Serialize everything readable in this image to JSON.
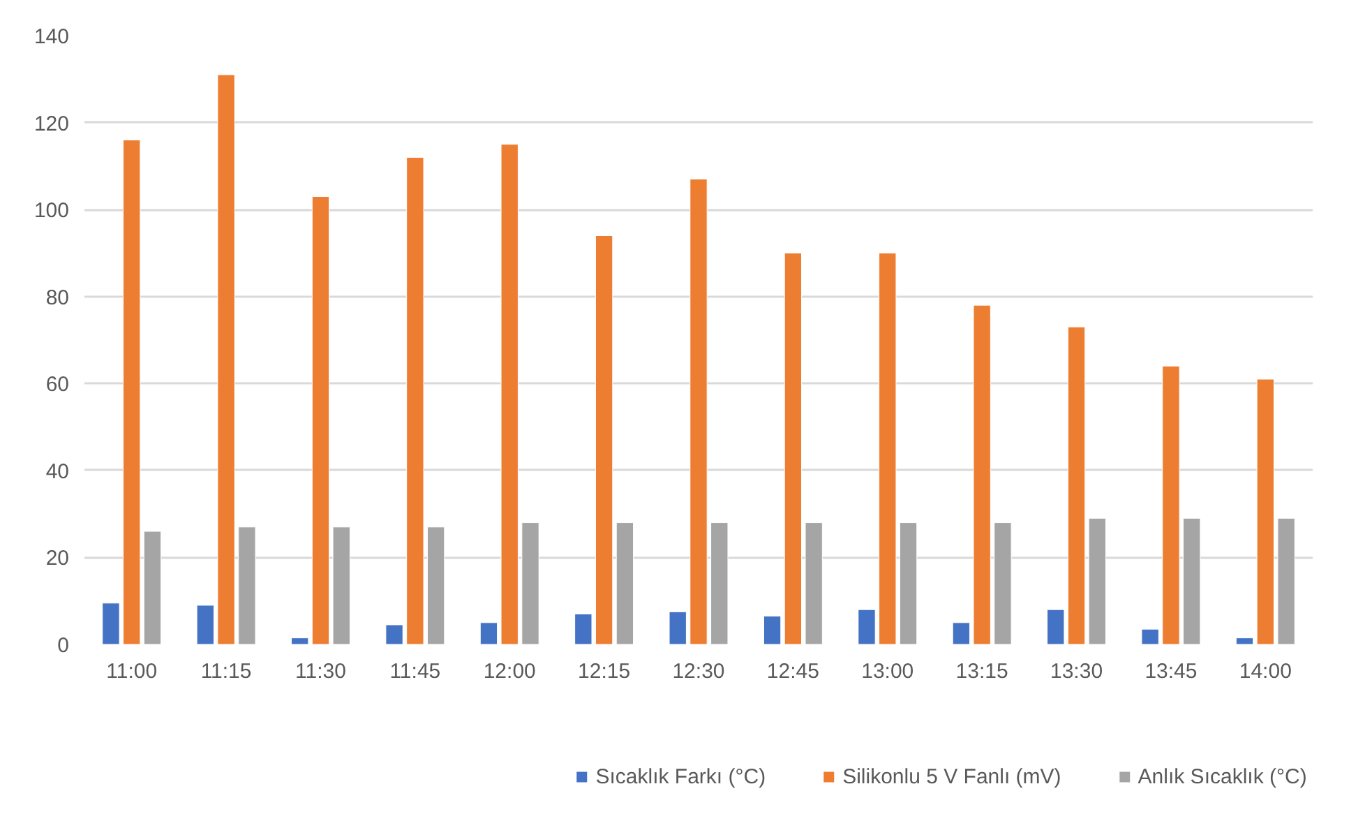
{
  "chart_data": {
    "type": "bar",
    "categories": [
      "11:00",
      "11:15",
      "11:30",
      "11:45",
      "12:00",
      "12:15",
      "12:30",
      "12:45",
      "13:00",
      "13:15",
      "13:30",
      "13:45",
      "14:00"
    ],
    "series": [
      {
        "name": "Sıcaklık Farkı (°C)",
        "color": "#4472c4",
        "values": [
          9.5,
          9,
          1.5,
          4.5,
          5,
          7,
          7.5,
          6.5,
          8,
          5,
          8,
          3.5,
          1.5
        ]
      },
      {
        "name": "Silikonlu 5 V Fanlı (mV)",
        "color": "#ed7d31",
        "values": [
          116,
          131,
          103,
          112,
          115,
          94,
          107,
          90,
          90,
          78,
          73,
          64,
          61
        ]
      },
      {
        "name": "Anlık Sıcaklık (°C)",
        "color": "#a5a5a5",
        "values": [
          26,
          27,
          27,
          27,
          28,
          28,
          28,
          28,
          28,
          28,
          29,
          29,
          29
        ]
      }
    ],
    "ylim": [
      0,
      140
    ],
    "yticks": [
      0,
      20,
      40,
      60,
      80,
      100,
      120,
      140
    ],
    "grid": "y",
    "legend": "bottom"
  }
}
